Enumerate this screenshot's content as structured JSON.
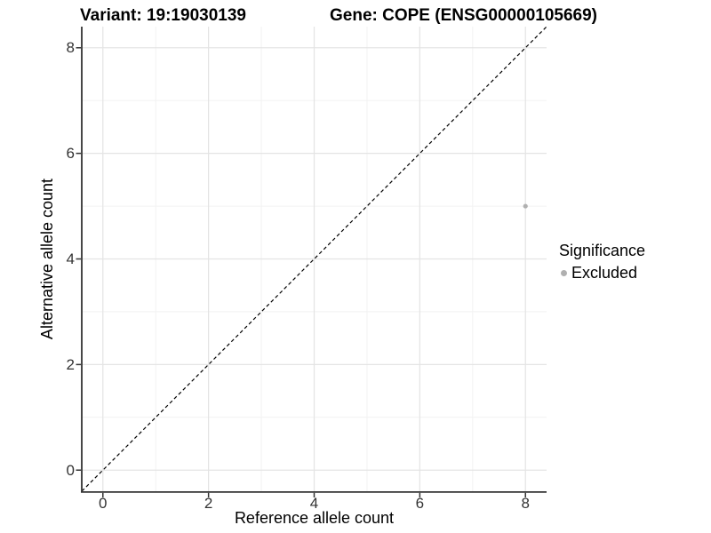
{
  "chart_data": {
    "type": "scatter",
    "titles": [
      "Variant: 19:19030139",
      "Gene: COPE (ENSG00000105669)"
    ],
    "xlabel": "Reference allele count",
    "ylabel": "Alternative allele count",
    "xlim": [
      -0.4,
      8.4
    ],
    "ylim": [
      -0.4,
      8.4
    ],
    "xticks": [
      0,
      2,
      4,
      6,
      8
    ],
    "yticks": [
      0,
      2,
      4,
      6,
      8
    ],
    "minor_xticks": [
      1,
      3,
      5,
      7
    ],
    "minor_yticks": [
      1,
      3,
      5,
      7
    ],
    "grid": "major and minor gridlines, white panel background",
    "reference_line": {
      "type": "identity y=x",
      "style": "dashed",
      "color": "#000000"
    },
    "series": [
      {
        "name": "Excluded",
        "color": "#b0b0b0",
        "points": [
          {
            "x": 8,
            "y": 5
          }
        ]
      }
    ],
    "legend": {
      "title": "Significance",
      "position": "right",
      "items": [
        {
          "label": "Excluded",
          "color": "#b0b0b0"
        }
      ]
    }
  },
  "style": {
    "background": "#ffffff",
    "grid_major_color": "#e4e4e4",
    "grid_minor_color": "#f2f2f2",
    "axis_line_color": "#333333",
    "tick_color": "#333333",
    "tick_label_color": "#333333",
    "title_color": "#000000",
    "dashed_line_color": "#000000"
  }
}
